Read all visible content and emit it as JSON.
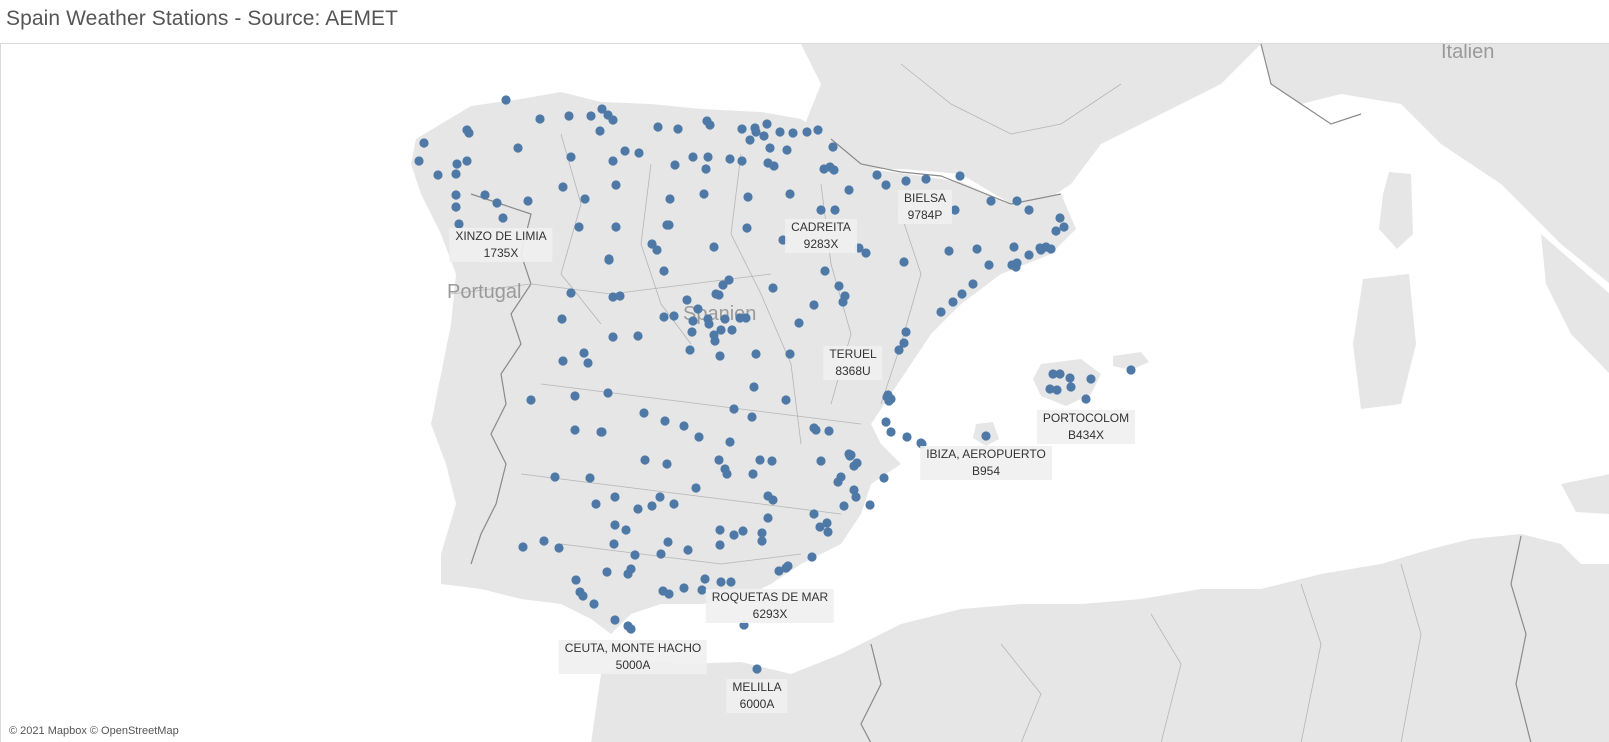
{
  "title": "Spain Weather Stations - Source: AEMET",
  "attribution": "© 2021 Mapbox © OpenStreetMap",
  "colors": {
    "land": "#e6e6e6",
    "sea": "#ffffff",
    "border": "#8a8a8a",
    "station": "#4e79a7"
  },
  "country_labels": [
    "Italien",
    "Portugal",
    "Spanien"
  ],
  "labeled_stations": [
    {
      "name": "XINZO DE LIMIA",
      "code": "1735X"
    },
    {
      "name": "CADREITA",
      "code": "9283X"
    },
    {
      "name": "BIELSA",
      "code": "9784P"
    },
    {
      "name": "TERUEL",
      "code": "8368U"
    },
    {
      "name": "PORTOCOLOM",
      "code": "B434X"
    },
    {
      "name": "IBIZA, AEROPUERTO",
      "code": "B954"
    },
    {
      "name": "ROQUETAS DE MAR",
      "code": "6293X"
    },
    {
      "name": "CEUTA, MONTE HACHO",
      "code": "5000A"
    },
    {
      "name": "MELILLA",
      "code": "6000A"
    }
  ]
}
